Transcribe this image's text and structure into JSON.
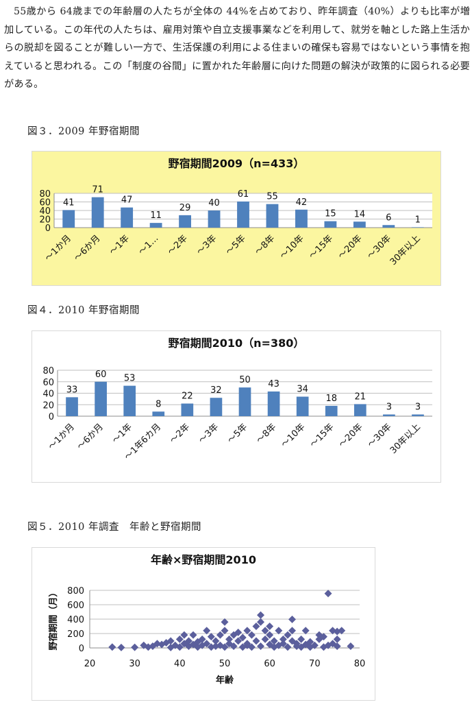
{
  "intro": {
    "text": "55歳から 64歳までの年齢層の人たちが全体の 44%を占めており、昨年調査（40%）よりも比率が増加している。この年代の人たちは、雇用対策や自立支援事業などを利用して、就労を軸とした路上生活からの脱却を図ることが難しい一方で、生活保護の利用による住まいの確保も容易ではないという事情を抱えていると思われる。この「制度の谷間」に置かれた年齢層に向けた問題の解決が政策的に図られる必要がある。"
  },
  "captions": {
    "fig3": "図３．2009 年野宿期間",
    "fig4": "図４．2010 年野宿期間",
    "fig5": "図５．2010 年調査　年齢と野宿期間"
  },
  "colors": {
    "bar": "#4f81bd",
    "scatter": "#5b5f9c",
    "fig3_background": "#fbf6a0",
    "gridline": "#bfbfbf"
  },
  "chart_data": [
    {
      "type": "bar",
      "title": "野宿期間2009（n=433）",
      "categories": [
        "～1か月",
        "～6か月",
        "～1年",
        "～1…",
        "～2年",
        "～3年",
        "～5年",
        "～8年",
        "～10年",
        "～15年",
        "～20年",
        "～30年",
        "30年以上"
      ],
      "values": [
        41,
        71,
        47,
        11,
        29,
        40,
        61,
        55,
        42,
        15,
        14,
        6,
        1
      ],
      "yticks": [
        0,
        20,
        40,
        60,
        80
      ],
      "ylim": [
        0,
        80
      ],
      "grid": true,
      "legend": "none"
    },
    {
      "type": "bar",
      "title": "野宿期間2010（n=380）",
      "categories": [
        "～1か月",
        "～6か月",
        "～1年",
        "～1年6カ月",
        "～2年",
        "～3年",
        "～5年",
        "～8年",
        "～10年",
        "～15年",
        "～20年",
        "～30年",
        "30年以上"
      ],
      "values": [
        33,
        60,
        53,
        8,
        22,
        32,
        50,
        43,
        34,
        18,
        21,
        3,
        3
      ],
      "yticks": [
        0,
        20,
        40,
        60,
        80
      ],
      "ylim": [
        0,
        80
      ],
      "grid": true,
      "legend": "none"
    },
    {
      "type": "scatter",
      "title": "年齢×野宿期間2010",
      "xlabel": "年齢",
      "ylabel": "野宿期間（月）",
      "xticks": [
        20,
        30,
        40,
        50,
        60,
        70,
        80
      ],
      "yticks": [
        0,
        200,
        400,
        600,
        800
      ],
      "xlim": [
        20,
        80
      ],
      "ylim": [
        0,
        800
      ],
      "grid": true,
      "legend": "none",
      "points": [
        [
          25,
          12
        ],
        [
          27,
          6
        ],
        [
          30,
          8
        ],
        [
          32,
          36
        ],
        [
          33,
          12
        ],
        [
          34,
          24
        ],
        [
          35,
          60
        ],
        [
          36,
          48
        ],
        [
          37,
          72
        ],
        [
          38,
          96
        ],
        [
          38,
          6
        ],
        [
          39,
          36
        ],
        [
          40,
          120
        ],
        [
          40,
          12
        ],
        [
          41,
          180
        ],
        [
          41,
          60
        ],
        [
          42,
          24
        ],
        [
          42,
          96
        ],
        [
          43,
          180
        ],
        [
          43,
          48
        ],
        [
          44,
          12
        ],
        [
          44,
          84
        ],
        [
          45,
          120
        ],
        [
          45,
          36
        ],
        [
          46,
          240
        ],
        [
          46,
          60
        ],
        [
          47,
          12
        ],
        [
          47,
          156
        ],
        [
          48,
          96
        ],
        [
          48,
          24
        ],
        [
          49,
          36
        ],
        [
          49,
          180
        ],
        [
          50,
          240
        ],
        [
          50,
          12
        ],
        [
          50,
          360
        ],
        [
          51,
          120
        ],
        [
          51,
          60
        ],
        [
          52,
          24
        ],
        [
          52,
          180
        ],
        [
          53,
          96
        ],
        [
          53,
          216
        ],
        [
          54,
          12
        ],
        [
          54,
          144
        ],
        [
          55,
          36
        ],
        [
          55,
          240
        ],
        [
          55,
          60
        ],
        [
          56,
          180
        ],
        [
          56,
          12
        ],
        [
          57,
          300
        ],
        [
          57,
          96
        ],
        [
          58,
          456
        ],
        [
          58,
          360
        ],
        [
          58,
          24
        ],
        [
          59,
          240
        ],
        [
          59,
          120
        ],
        [
          60,
          48
        ],
        [
          60,
          300
        ],
        [
          60,
          180
        ],
        [
          61,
          12
        ],
        [
          61,
          96
        ],
        [
          62,
          240
        ],
        [
          62,
          36
        ],
        [
          63,
          120
        ],
        [
          63,
          60
        ],
        [
          64,
          12
        ],
        [
          64,
          180
        ],
        [
          65,
          396
        ],
        [
          65,
          240
        ],
        [
          65,
          96
        ],
        [
          66,
          24
        ],
        [
          66,
          60
        ],
        [
          67,
          120
        ],
        [
          67,
          12
        ],
        [
          68,
          240
        ],
        [
          68,
          48
        ],
        [
          69,
          84
        ],
        [
          69,
          12
        ],
        [
          70,
          36
        ],
        [
          71,
          180
        ],
        [
          71,
          120
        ],
        [
          72,
          156
        ],
        [
          72,
          12
        ],
        [
          73,
          756
        ],
        [
          73,
          36
        ],
        [
          74,
          240
        ],
        [
          74,
          60
        ],
        [
          75,
          228
        ],
        [
          75,
          120
        ],
        [
          75,
          24
        ],
        [
          76,
          240
        ],
        [
          78,
          24
        ]
      ]
    }
  ]
}
